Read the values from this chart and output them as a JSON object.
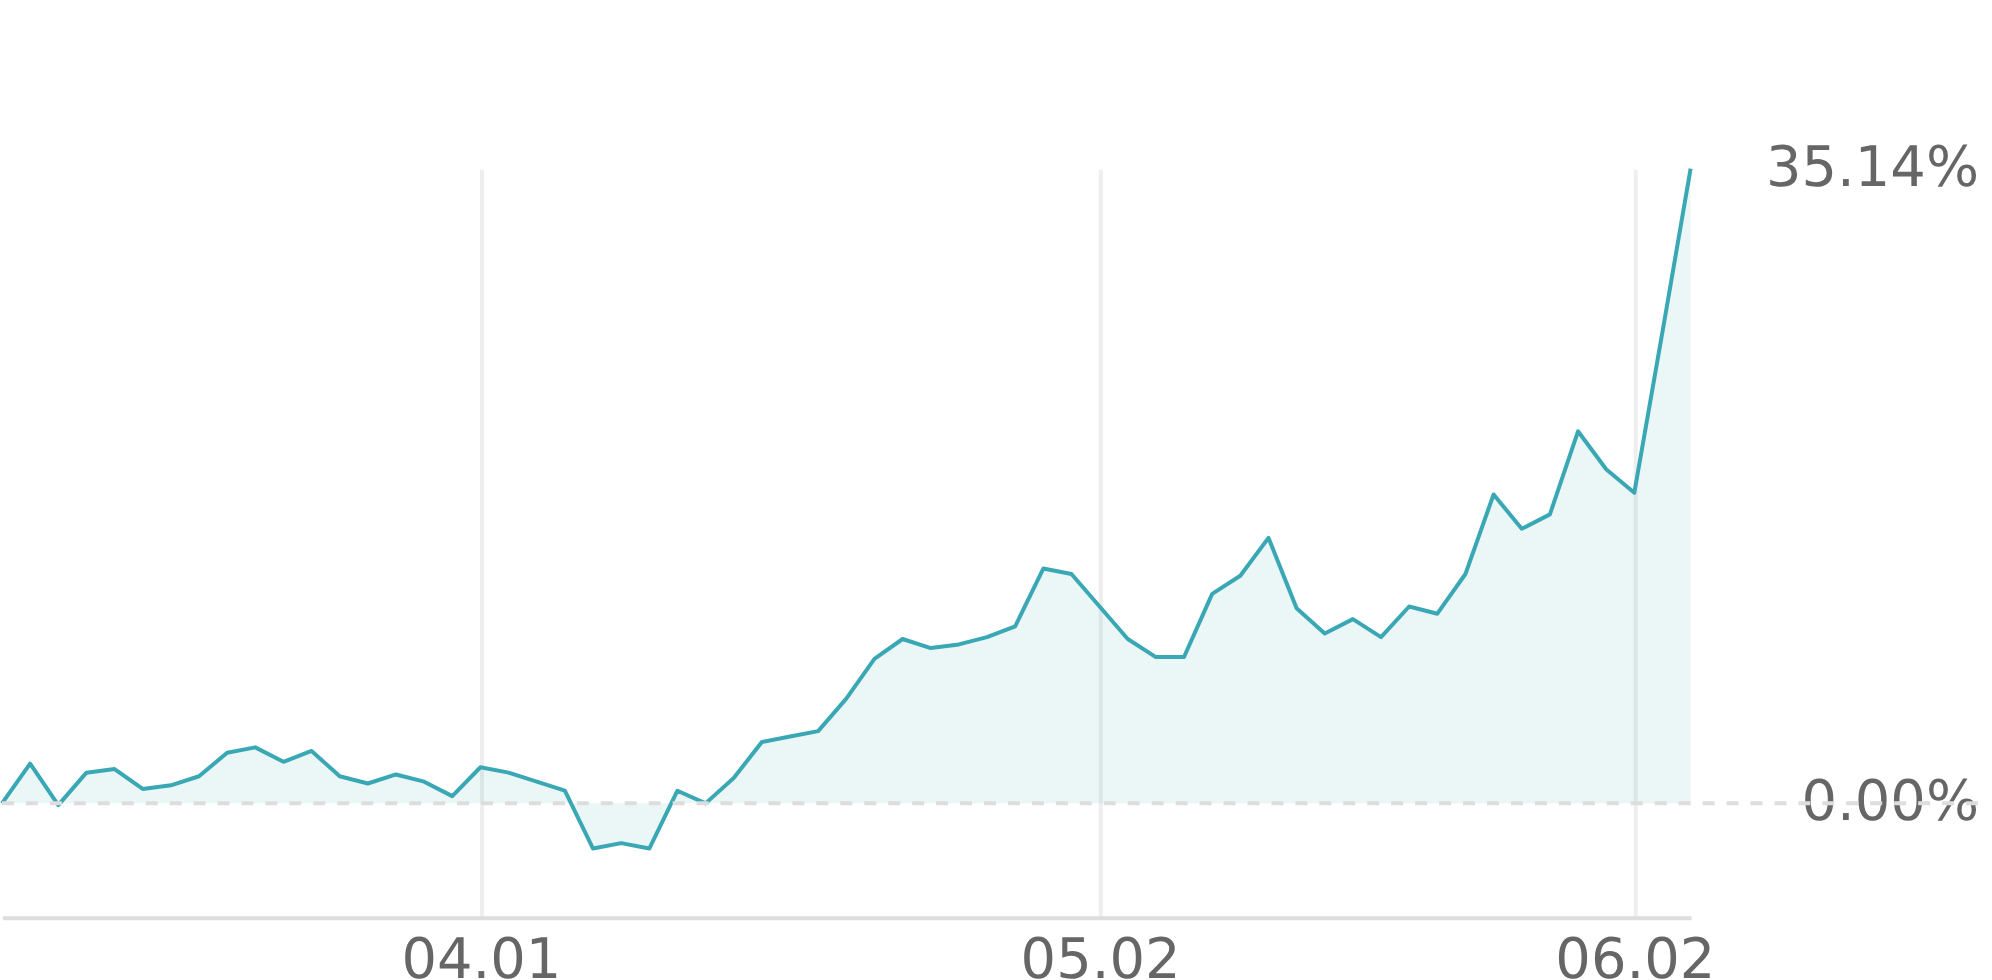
{
  "chart_data": {
    "type": "area",
    "categories": [
      null,
      null,
      null,
      null,
      null,
      null,
      null,
      null,
      null,
      null,
      null,
      null,
      null,
      null,
      null,
      null,
      null,
      "04.01",
      null,
      null,
      null,
      null,
      null,
      null,
      null,
      null,
      null,
      null,
      null,
      null,
      null,
      null,
      null,
      null,
      null,
      null,
      null,
      null,
      null,
      "05.02",
      null,
      null,
      null,
      null,
      null,
      null,
      null,
      null,
      null,
      null,
      null,
      null,
      null,
      null,
      null,
      null,
      null,
      null,
      "06.02",
      null,
      null
    ],
    "series": [
      {
        "color": "#3aa8b4",
        "values": [
          0.0,
          2.2,
          -0.1,
          1.7,
          1.9,
          0.8,
          1.0,
          1.5,
          2.8,
          3.1,
          2.3,
          2.9,
          1.5,
          1.1,
          1.6,
          1.2,
          0.4,
          2.0,
          1.7,
          1.2,
          0.7,
          -2.5,
          -2.2,
          -2.5,
          0.7,
          0.0,
          1.4,
          3.4,
          3.7,
          4.0,
          5.8,
          8.0,
          9.1,
          8.6,
          8.8,
          9.2,
          9.8,
          13.0,
          12.7,
          10.9,
          9.1,
          8.1,
          8.1,
          11.6,
          12.6,
          14.7,
          10.8,
          9.4,
          10.2,
          9.2,
          10.9,
          10.5,
          12.7,
          17.1,
          15.2,
          16.0,
          20.6,
          18.5,
          17.2,
          26.1,
          35.14
        ]
      }
    ],
    "ylim": [
      -6.3,
      35.14
    ],
    "yticks": [
      {
        "value": 0,
        "label": "0.00%"
      },
      {
        "value": 35.14,
        "label": "35.14%"
      }
    ],
    "ref_lines": [
      {
        "axis": "y",
        "value": 0,
        "line_style": "dashed",
        "color": "#dddddd"
      }
    ],
    "grid": "x"
  }
}
